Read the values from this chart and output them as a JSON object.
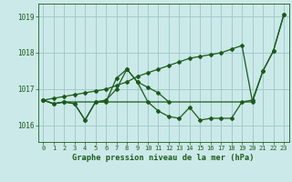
{
  "title": "Graphe pression niveau de la mer (hPa)",
  "background_color": "#cce9e9",
  "grid_color": "#a0cccc",
  "line_color": "#1a5c1a",
  "xlim": [
    -0.5,
    23.5
  ],
  "ylim": [
    1015.55,
    1019.35
  ],
  "yticks": [
    1016,
    1017,
    1018,
    1019
  ],
  "xticks": [
    0,
    1,
    2,
    3,
    4,
    5,
    6,
    7,
    8,
    9,
    10,
    11,
    12,
    13,
    14,
    15,
    16,
    17,
    18,
    19,
    20,
    21,
    22,
    23
  ],
  "series": [
    {
      "x": [
        0,
        1,
        2,
        3,
        4,
        5,
        6,
        7,
        8,
        9,
        10,
        11,
        12,
        13,
        14,
        15,
        16,
        17,
        18,
        19,
        20,
        21,
        22,
        23
      ],
      "y": [
        1016.7,
        1016.75,
        1016.8,
        1016.85,
        1016.9,
        1016.95,
        1017.0,
        1017.1,
        1017.2,
        1017.35,
        1017.45,
        1017.55,
        1017.65,
        1017.75,
        1017.85,
        1017.9,
        1017.95,
        1018.0,
        1018.1,
        1018.2,
        1016.65,
        1017.5,
        1018.05,
        1019.05
      ],
      "marker": true
    },
    {
      "x": [
        0,
        1,
        2,
        3,
        4,
        5,
        6,
        7,
        8,
        9,
        10,
        11,
        12,
        13,
        14,
        15,
        16,
        17,
        18,
        19,
        20,
        21,
        22,
        23
      ],
      "y": [
        1016.7,
        1016.6,
        1016.65,
        1016.6,
        1016.15,
        1016.65,
        1016.7,
        1017.0,
        1017.55,
        1017.2,
        1016.65,
        1016.4,
        1016.25,
        1016.2,
        1016.5,
        1016.15,
        1016.2,
        1016.2,
        1016.2,
        1016.65,
        1016.7,
        1017.5,
        1018.05,
        1019.05
      ],
      "marker": true
    },
    {
      "x": [
        0,
        1,
        2,
        3,
        4,
        5,
        6,
        7,
        8,
        9,
        10,
        11,
        12,
        13,
        14,
        15,
        16,
        17,
        18,
        19,
        20
      ],
      "y": [
        1016.7,
        1016.6,
        1016.65,
        1016.65,
        1016.65,
        1016.65,
        1016.65,
        1016.65,
        1016.65,
        1016.65,
        1016.65,
        1016.65,
        1016.65,
        1016.65,
        1016.65,
        1016.65,
        1016.65,
        1016.65,
        1016.65,
        1016.65,
        1016.65
      ],
      "marker": false
    },
    {
      "x": [
        0,
        1,
        2,
        3,
        4,
        5,
        6,
        7,
        8,
        9,
        10,
        11,
        12
      ],
      "y": [
        1016.7,
        1016.6,
        1016.65,
        1016.6,
        1016.15,
        1016.65,
        1016.65,
        1017.3,
        1017.55,
        1017.2,
        1017.05,
        1016.9,
        1016.65
      ],
      "marker": true
    }
  ]
}
